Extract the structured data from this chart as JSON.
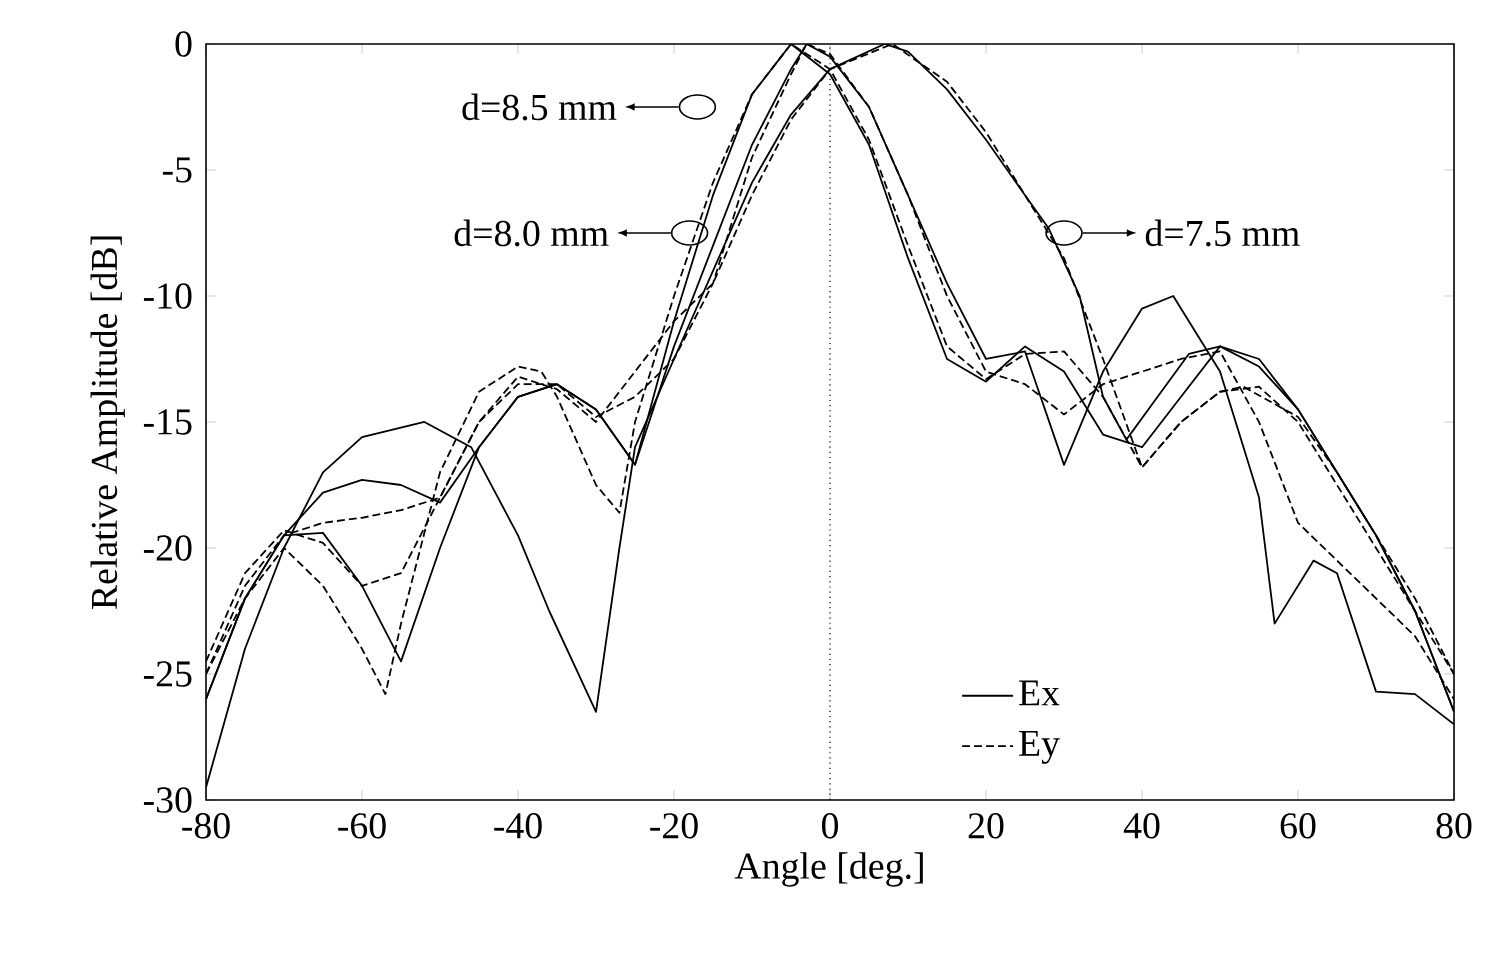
{
  "chart_data": {
    "type": "line",
    "xlabel": "Angle [deg.]",
    "ylabel": "Relative Amplitude [dB]",
    "xlim": [
      -80,
      80
    ],
    "ylim": [
      -30,
      0
    ],
    "xticks": [
      -80,
      -60,
      -40,
      -20,
      0,
      20,
      40,
      60,
      80
    ],
    "yticks": [
      -30,
      -25,
      -20,
      -15,
      -10,
      -5,
      0
    ],
    "grid": false,
    "legend": "bottom",
    "marker": "none",
    "series": [
      {
        "name": "Ex",
        "color": "#000000",
        "line_style": "solid",
        "x": [
          -80,
          -75,
          -70,
          -65,
          -60,
          -55,
          -50,
          -45,
          -40,
          -35,
          -30,
          -25,
          -20,
          -15,
          -10,
          -5,
          0,
          5,
          10,
          15,
          20,
          25,
          30,
          35,
          40,
          45,
          50,
          55,
          60,
          65,
          70,
          75,
          80
        ],
        "values": [
          -26,
          -22,
          -19.5,
          -19.4,
          -21.5,
          -24.5,
          -20,
          -16,
          -14,
          -13.5,
          -14.5,
          -16.7,
          -11,
          -6,
          -2,
          0,
          -1.2,
          -4,
          -8.5,
          -12.5,
          -13.4,
          -12,
          -13,
          -15.5,
          -16,
          -14,
          -12,
          -12.5,
          -14.5,
          -17,
          -19.5,
          -22.5,
          -26.5
        ]
      },
      {
        "name": "Ey",
        "color": "#000000",
        "line_style": "dashed",
        "x": [
          -80,
          -75,
          -70,
          -65,
          -60,
          -57,
          -55,
          -50,
          -45,
          -40,
          -37,
          -35,
          -30,
          -27,
          -25,
          -20,
          -15,
          -10,
          -5,
          0,
          5,
          10,
          15,
          20,
          25,
          30,
          35,
          40,
          45,
          50,
          55,
          60,
          65,
          70,
          75,
          80
        ],
        "values": [
          -25,
          -22,
          -20,
          -21.5,
          -24,
          -25.8,
          -23,
          -17,
          -13.8,
          -12.8,
          -13,
          -14,
          -17.5,
          -18.6,
          -15,
          -10,
          -5.5,
          -2,
          0,
          -1,
          -3.8,
          -8,
          -12,
          -13.3,
          -12.3,
          -12.2,
          -14,
          -16.8,
          -15,
          -13.8,
          -13.6,
          -15,
          -17.5,
          -20,
          -22.5,
          -25
        ]
      },
      {
        "color": "#000000",
        "line_style": "solid",
        "x": [
          -80,
          -75,
          -70,
          -65,
          -60,
          -55,
          -50,
          -45,
          -40,
          -35,
          -30,
          -25,
          -20,
          -15,
          -10,
          -5,
          -3,
          0,
          5,
          10,
          15,
          20,
          25,
          30,
          35,
          40,
          44,
          50,
          55,
          57,
          62,
          65,
          70,
          75,
          80
        ],
        "values": [
          -26,
          -22,
          -19.5,
          -17.8,
          -17.3,
          -17.5,
          -18.2,
          -16,
          -14,
          -13.5,
          -14.5,
          -16.7,
          -12,
          -8,
          -4,
          -1,
          0,
          -0.5,
          -2.5,
          -6,
          -9.5,
          -12.5,
          -12.2,
          -16.7,
          -13,
          -10.5,
          -10,
          -13,
          -18,
          -23,
          -20.5,
          -21,
          -25.7,
          -25.8,
          -27
        ]
      },
      {
        "color": "#000000",
        "line_style": "dashed",
        "x": [
          -80,
          -75,
          -70,
          -65,
          -60,
          -55,
          -50,
          -45,
          -40,
          -35,
          -30,
          -25,
          -20,
          -15,
          -10,
          -5,
          -3,
          0,
          5,
          10,
          15,
          20,
          25,
          30,
          35,
          40,
          45,
          50,
          55,
          60,
          65,
          70,
          75,
          80
        ],
        "values": [
          -25,
          -21.5,
          -19.5,
          -19,
          -18.8,
          -18.5,
          -18,
          -15,
          -13.5,
          -13.5,
          -14.8,
          -14,
          -12.5,
          -9.5,
          -4.5,
          -1.2,
          0,
          -0.4,
          -2.5,
          -6,
          -10,
          -13,
          -13.5,
          -14.7,
          -13.5,
          -13,
          -12.5,
          -12.2,
          -15,
          -19,
          -20.5,
          -22,
          -23.5,
          -26
        ]
      },
      {
        "color": "#000000",
        "line_style": "solid",
        "x": [
          -80,
          -75,
          -70,
          -65,
          -60,
          -52,
          -46,
          -40,
          -36,
          -30,
          -27,
          -25,
          -20,
          -15,
          -10,
          -5,
          0,
          7,
          10,
          15,
          20,
          25,
          28,
          32,
          35,
          38,
          42,
          46,
          50,
          55,
          60,
          65,
          70,
          75,
          80
        ],
        "values": [
          -29.5,
          -24,
          -20,
          -17,
          -15.6,
          -15,
          -16,
          -19.5,
          -22.5,
          -26.5,
          -20,
          -16,
          -12.5,
          -9,
          -5.5,
          -2.8,
          -1,
          0,
          -0.3,
          -1.8,
          -3.8,
          -6,
          -7.3,
          -10,
          -14,
          -15.7,
          -14,
          -12.3,
          -12,
          -12.8,
          -14.5,
          -17,
          -19.5,
          -22.5,
          -26.5
        ]
      },
      {
        "color": "#000000",
        "line_style": "dashed",
        "x": [
          -80,
          -75,
          -70,
          -65,
          -60,
          -55,
          -50,
          -45,
          -40,
          -35,
          -30,
          -25,
          -20,
          -15,
          -10,
          -5,
          0,
          8,
          15,
          20,
          25,
          30,
          35,
          40,
          45,
          50,
          53,
          60,
          65,
          70,
          75,
          80
        ],
        "values": [
          -24.5,
          -21,
          -19.3,
          -19.8,
          -21.5,
          -21,
          -18,
          -15,
          -13.2,
          -13.7,
          -15,
          -13,
          -11,
          -9.5,
          -6,
          -3,
          -1,
          0,
          -1.5,
          -3.5,
          -6,
          -8.5,
          -12.5,
          -16.8,
          -15,
          -13.8,
          -13.6,
          -14.8,
          -17,
          -19.5,
          -22,
          -25
        ]
      }
    ],
    "ref_lines": [
      {
        "axis": "x",
        "value": 0,
        "line_style": "dotted",
        "color": "#000000"
      }
    ],
    "annotations": [
      {
        "text": "d=8.5 mm",
        "x": -17,
        "y": -2.5
      },
      {
        "text": "d=8.0 mm",
        "x": -18,
        "y": -7.5
      },
      {
        "text": "d=7.5 mm",
        "x": 30,
        "y": -7.5
      }
    ]
  }
}
